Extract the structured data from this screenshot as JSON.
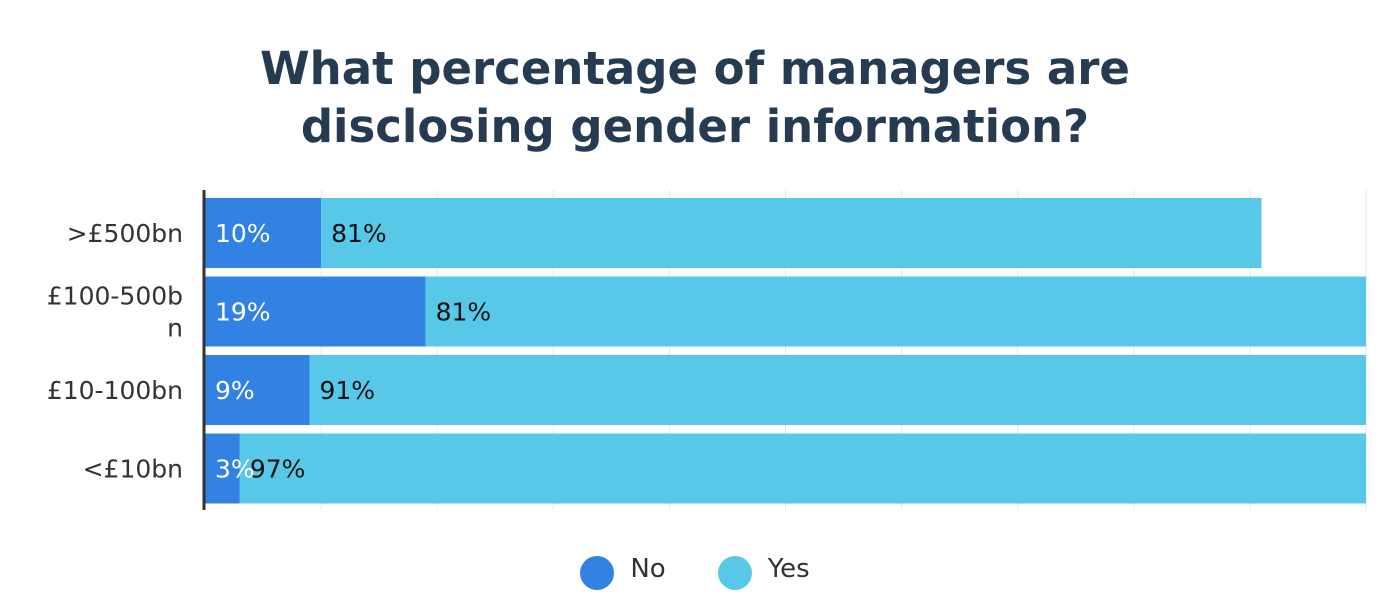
{
  "chart_data": {
    "type": "bar",
    "orientation": "horizontal",
    "stacked": true,
    "title_lines": [
      "What percentage of managers are",
      "disclosing gender information?"
    ],
    "categories": [
      ">£500bn",
      "£100-500bn",
      "£10-100bn",
      "<£10bn"
    ],
    "category_label_lines": [
      [
        ">£500bn"
      ],
      [
        "£100-500b",
        "n"
      ],
      [
        "£10-100bn"
      ],
      [
        "<£10bn"
      ]
    ],
    "series": [
      {
        "name": "No",
        "values": [
          10,
          19,
          9,
          3
        ],
        "labels": [
          "10%",
          "19%",
          "9%",
          "3%"
        ],
        "color": "#3182e3",
        "label_color": "#ffffff"
      },
      {
        "name": "Yes",
        "values": [
          81,
          81,
          91,
          97
        ],
        "labels": [
          "81%",
          "81%",
          "91%",
          "97%"
        ],
        "color": "#58c8e8",
        "label_color": "#111111"
      }
    ],
    "xlim": [
      0,
      100
    ],
    "grid": true,
    "legend_position": "bottom-center"
  }
}
